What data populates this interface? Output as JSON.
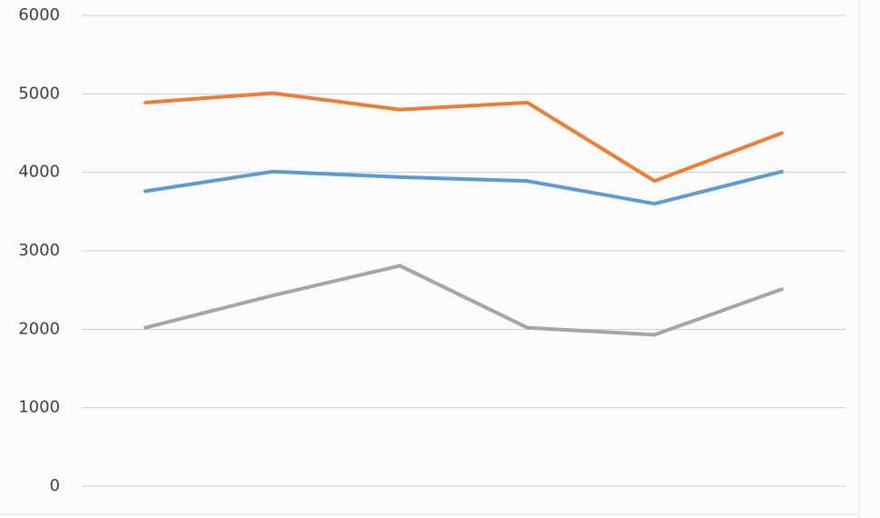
{
  "chart_data": {
    "type": "line",
    "categories": [
      null,
      null,
      null,
      null,
      null,
      null
    ],
    "series": [
      {
        "color": "#ed7d31",
        "values": [
          4890,
          5010,
          4800,
          4890,
          3890,
          4500
        ]
      },
      {
        "color": "#5b9bd5",
        "values": [
          3760,
          4010,
          3940,
          3890,
          3600,
          4010
        ]
      },
      {
        "color": "#a5a5a5",
        "values": [
          2020,
          2430,
          2810,
          2020,
          1930,
          2510
        ]
      }
    ],
    "ylim": [
      0,
      6000
    ],
    "yticks": [
      0,
      1000,
      2000,
      3000,
      4000,
      5000,
      6000
    ],
    "grid": true
  }
}
